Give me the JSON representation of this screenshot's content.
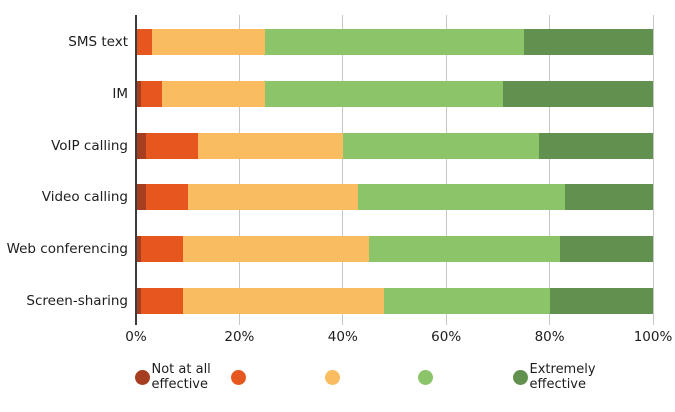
{
  "chart_data": {
    "type": "bar",
    "orientation": "horizontal",
    "stacked": true,
    "title": "",
    "xlabel": "",
    "ylabel": "",
    "xlim": [
      0,
      100
    ],
    "grid": true,
    "legend_position": "bottom",
    "categories": [
      "SMS text",
      "IM",
      "VoIP calling",
      "Video calling",
      "Web conferencing",
      "Screen-sharing"
    ],
    "series": [
      {
        "name": "Not at all effective",
        "color": "#a63e22",
        "values": [
          0,
          1,
          2,
          2,
          1,
          1
        ]
      },
      {
        "name": "",
        "color": "#e5571e",
        "values": [
          3,
          4,
          10,
          8,
          8,
          8
        ]
      },
      {
        "name": "",
        "color": "#fabc60",
        "values": [
          22,
          20,
          28,
          33,
          36,
          39
        ]
      },
      {
        "name": "",
        "color": "#8bc469",
        "values": [
          50,
          46,
          38,
          40,
          37,
          32
        ]
      },
      {
        "name": "Extremely effective",
        "color": "#62904f",
        "values": [
          25,
          29,
          22,
          17,
          18,
          20
        ]
      }
    ],
    "x_ticks": [
      "0%",
      "20%",
      "40%",
      "60%",
      "80%",
      "100%"
    ],
    "x_tick_values": [
      0,
      20,
      40,
      60,
      80,
      100
    ],
    "legend": {
      "first_label": "Not at all effective",
      "last_label": "Extremely effective"
    }
  }
}
